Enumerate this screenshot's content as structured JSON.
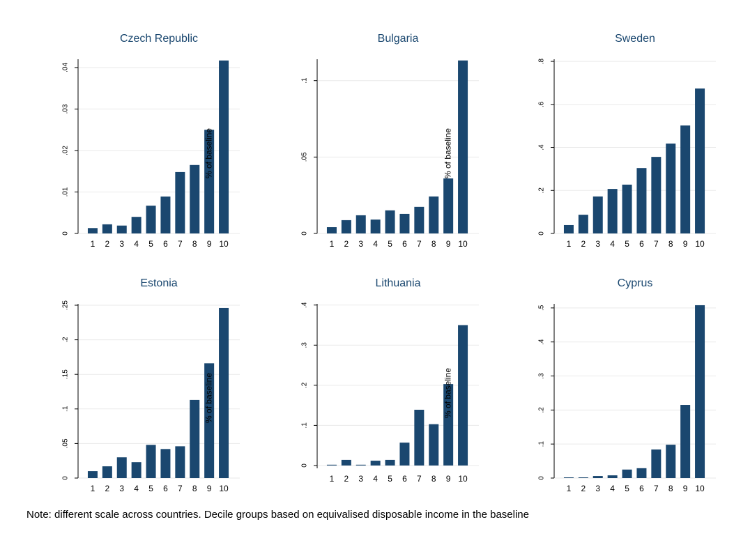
{
  "chart_data": [
    {
      "type": "bar",
      "title": "Czech Republic",
      "ylabel": "% of baseline",
      "categories": [
        "1",
        "2",
        "3",
        "4",
        "5",
        "6",
        "7",
        "8",
        "9",
        "10"
      ],
      "values": [
        0.0013,
        0.0022,
        0.0019,
        0.004,
        0.0067,
        0.0089,
        0.0148,
        0.0165,
        0.025,
        0.0417
      ],
      "color": "#1a476f",
      "ylim": [
        0,
        0.042
      ],
      "yticks": [
        0,
        {
          "value": 0.01,
          "label": ".01"
        },
        {
          "value": 0.02,
          "label": ".02"
        },
        {
          "value": 0.03,
          "label": ".03"
        },
        {
          "value": 0.04,
          "label": ".04"
        }
      ],
      "grid": true
    },
    {
      "type": "bar",
      "title": "Bulgaria",
      "ylabel": "% of baseline",
      "categories": [
        "1",
        "2",
        "3",
        "4",
        "5",
        "6",
        "7",
        "8",
        "9",
        "10"
      ],
      "values": [
        0.0041,
        0.0087,
        0.0119,
        0.0091,
        0.0151,
        0.0128,
        0.0174,
        0.0242,
        0.036,
        0.1132
      ],
      "color": "#1a476f",
      "ylim": [
        0,
        0.114
      ],
      "yticks": [
        0,
        {
          "value": 0.05,
          "label": ".05"
        },
        {
          "value": 0.1,
          "label": ".1"
        }
      ],
      "grid": true
    },
    {
      "type": "bar",
      "title": "Sweden",
      "categories": [
        "1",
        "2",
        "3",
        "4",
        "5",
        "6",
        "7",
        "8",
        "9",
        "10"
      ],
      "values": [
        0.039,
        0.087,
        0.172,
        0.207,
        0.227,
        0.304,
        0.356,
        0.418,
        0.502,
        0.674
      ],
      "color": "#1a476f",
      "ylim": [
        0,
        0.81
      ],
      "yticks": [
        0,
        {
          "value": 0.2,
          "label": ".2"
        },
        {
          "value": 0.4,
          "label": ".4"
        },
        {
          "value": 0.6,
          "label": ".6"
        },
        {
          "value": 0.8,
          "label": ".8"
        }
      ],
      "grid": true
    },
    {
      "type": "bar",
      "title": "Estonia",
      "ylabel": "% of baseline",
      "categories": [
        "1",
        "2",
        "3",
        "4",
        "5",
        "6",
        "7",
        "8",
        "9",
        "10"
      ],
      "values": [
        0.01,
        0.017,
        0.03,
        0.023,
        0.048,
        0.042,
        0.046,
        0.113,
        0.166,
        0.246
      ],
      "color": "#1a476f",
      "ylim": [
        0,
        0.252
      ],
      "yticks": [
        0,
        {
          "value": 0.05,
          "label": ".05"
        },
        {
          "value": 0.1,
          "label": ".1"
        },
        {
          "value": 0.15,
          "label": ".15"
        },
        {
          "value": 0.2,
          "label": ".2"
        },
        {
          "value": 0.25,
          "label": ".25"
        }
      ],
      "grid": true
    },
    {
      "type": "bar",
      "title": "Lithuania",
      "ylabel": "% of baseline",
      "categories": [
        "1",
        "2",
        "3",
        "4",
        "5",
        "6",
        "7",
        "8",
        "9",
        "10"
      ],
      "values": [
        0.002,
        0.014,
        0.002,
        0.012,
        0.014,
        0.057,
        0.139,
        0.103,
        0.203,
        0.35
      ],
      "color": "#1a476f",
      "ylim": [
        -0.007,
        0.403
      ],
      "yticks": [
        0,
        {
          "value": 0.1,
          "label": ".1"
        },
        {
          "value": 0.2,
          "label": ".2"
        },
        {
          "value": 0.3,
          "label": ".3"
        },
        {
          "value": 0.4,
          "label": ".4"
        }
      ],
      "grid": true
    },
    {
      "type": "bar",
      "title": "Cyprus",
      "categories": [
        "1",
        "2",
        "3",
        "4",
        "5",
        "6",
        "7",
        "8",
        "9",
        "10"
      ],
      "values": [
        0.002,
        0.002,
        0.006,
        0.008,
        0.025,
        0.029,
        0.084,
        0.098,
        0.215,
        0.508
      ],
      "color": "#1a476f",
      "ylim": [
        0,
        0.512
      ],
      "yticks": [
        0,
        {
          "value": 0.1,
          "label": ".1"
        },
        {
          "value": 0.2,
          "label": ".2"
        },
        {
          "value": 0.3,
          "label": ".3"
        },
        {
          "value": 0.4,
          "label": ".4"
        },
        {
          "value": 0.5,
          "label": ".5"
        }
      ],
      "grid": true
    }
  ],
  "note": "Note: different scale across countries. Decile groups based on equivalised disposable income in the baseline"
}
